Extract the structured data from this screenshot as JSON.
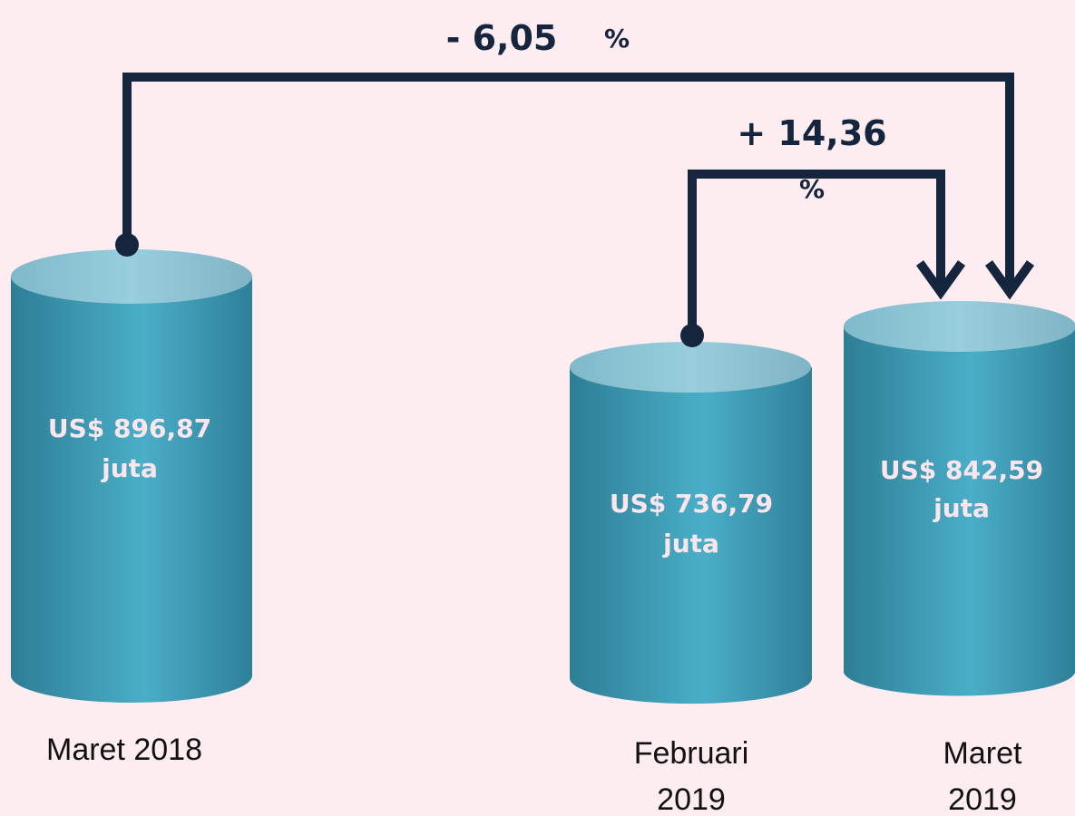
{
  "changes": [
    {
      "value": "- 6,05",
      "unit": "%"
    },
    {
      "value": "+ 14,36",
      "unit": "%"
    }
  ],
  "items": [
    {
      "amount": "US$ 896,87",
      "unit": "juta",
      "label": [
        "Maret 2018"
      ]
    },
    {
      "amount": "US$ 736,79",
      "unit": "juta",
      "label": [
        "Februari",
        "2019"
      ]
    },
    {
      "amount": "US$ 842,59",
      "unit": "juta",
      "label": [
        "Maret",
        "2019"
      ]
    }
  ]
}
